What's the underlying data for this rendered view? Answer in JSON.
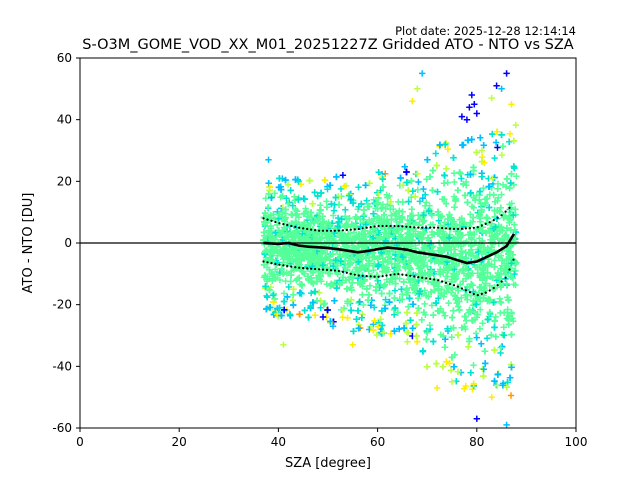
{
  "chart_data": {
    "type": "scatter",
    "plot_date": "Plot date: 2025-12-28 12:14:14",
    "title": "S-O3M_GOME_VOD_XX_M01_20251227Z Gridded ATO - NTO vs SZA",
    "xlabel": "SZA [degree]",
    "ylabel": "ATO - NTO [DU]",
    "xlim": [
      0,
      100
    ],
    "ylim": [
      -60,
      60
    ],
    "x_ticks": [
      0,
      20,
      40,
      60,
      80,
      100
    ],
    "y_ticks": [
      -60,
      -40,
      -20,
      0,
      20,
      40,
      60
    ],
    "grid": false,
    "legend": "none",
    "marker": "plus",
    "zero_line": 0,
    "colors": {
      "density_low": "#0000ff",
      "density_mid_low": "#00bfff",
      "density_mid": "#00e5d0",
      "density_bulk": "#55ff99",
      "density_mid_high": "#bbff44",
      "density_high": "#ffee00",
      "density_peak": "#ff9900",
      "stats": "#000000"
    },
    "envelope": [
      {
        "x": 37,
        "lower": -22,
        "upper": 20
      },
      {
        "x": 40,
        "lower": -24,
        "upper": 21
      },
      {
        "x": 45,
        "lower": -24,
        "upper": 21
      },
      {
        "x": 50,
        "lower": -26,
        "upper": 22
      },
      {
        "x": 55,
        "lower": -29,
        "upper": 22
      },
      {
        "x": 60,
        "lower": -30,
        "upper": 24
      },
      {
        "x": 65,
        "lower": -29,
        "upper": 25
      },
      {
        "x": 68,
        "lower": -33,
        "upper": 27
      },
      {
        "x": 70,
        "lower": -42,
        "upper": 30
      },
      {
        "x": 73,
        "lower": -45,
        "upper": 33
      },
      {
        "x": 76,
        "lower": -47,
        "upper": 36
      },
      {
        "x": 79,
        "lower": -48,
        "upper": 34
      },
      {
        "x": 82,
        "lower": -47,
        "upper": 36
      },
      {
        "x": 85,
        "lower": -48,
        "upper": 40
      },
      {
        "x": 88,
        "lower": -56,
        "upper": 45
      }
    ],
    "outliers": [
      {
        "x": 79,
        "y": 48
      },
      {
        "x": 79.5,
        "y": 45
      },
      {
        "x": 78.5,
        "y": 44
      },
      {
        "x": 80,
        "y": 42
      },
      {
        "x": 77,
        "y": 41
      },
      {
        "x": 78,
        "y": 40
      },
      {
        "x": 81,
        "y": 30
      },
      {
        "x": 81.5,
        "y": 26
      },
      {
        "x": 86,
        "y": 55
      },
      {
        "x": 69,
        "y": 55
      },
      {
        "x": 68,
        "y": 50
      },
      {
        "x": 67,
        "y": 46
      },
      {
        "x": 84,
        "y": 51
      },
      {
        "x": 85,
        "y": 50
      },
      {
        "x": 83,
        "y": 47
      },
      {
        "x": 87,
        "y": 45
      },
      {
        "x": 53,
        "y": 22
      },
      {
        "x": 38,
        "y": 27
      },
      {
        "x": 41,
        "y": -33
      },
      {
        "x": 55,
        "y": -33
      },
      {
        "x": 49,
        "y": -24
      },
      {
        "x": 51,
        "y": -27
      },
      {
        "x": 66,
        "y": -32
      },
      {
        "x": 72,
        "y": -47
      },
      {
        "x": 80,
        "y": -57
      },
      {
        "x": 86,
        "y": -59
      },
      {
        "x": 75,
        "y": -45
      },
      {
        "x": 83,
        "y": -50
      }
    ],
    "mean": [
      {
        "x": 37,
        "y": 0
      },
      {
        "x": 40,
        "y": -0.3
      },
      {
        "x": 42,
        "y": 0
      },
      {
        "x": 44,
        "y": -0.8
      },
      {
        "x": 46,
        "y": -1.2
      },
      {
        "x": 48,
        "y": -1.4
      },
      {
        "x": 50,
        "y": -1.6
      },
      {
        "x": 52,
        "y": -2
      },
      {
        "x": 54,
        "y": -2.5
      },
      {
        "x": 56,
        "y": -3
      },
      {
        "x": 58,
        "y": -2.6
      },
      {
        "x": 60,
        "y": -2
      },
      {
        "x": 62,
        "y": -1.5
      },
      {
        "x": 64,
        "y": -1.8
      },
      {
        "x": 66,
        "y": -2.2
      },
      {
        "x": 68,
        "y": -3
      },
      {
        "x": 70,
        "y": -3.5
      },
      {
        "x": 72,
        "y": -4
      },
      {
        "x": 74,
        "y": -4.5
      },
      {
        "x": 76,
        "y": -5.5
      },
      {
        "x": 78,
        "y": -6.5
      },
      {
        "x": 80,
        "y": -6
      },
      {
        "x": 82,
        "y": -4.5
      },
      {
        "x": 84,
        "y": -3
      },
      {
        "x": 86,
        "y": -1
      },
      {
        "x": 87.5,
        "y": 3
      }
    ],
    "upper_sd": [
      {
        "x": 37,
        "y": 8
      },
      {
        "x": 40,
        "y": 6.5
      },
      {
        "x": 44,
        "y": 5
      },
      {
        "x": 48,
        "y": 4
      },
      {
        "x": 52,
        "y": 4
      },
      {
        "x": 56,
        "y": 4.5
      },
      {
        "x": 60,
        "y": 5.5
      },
      {
        "x": 64,
        "y": 5.5
      },
      {
        "x": 68,
        "y": 5
      },
      {
        "x": 72,
        "y": 5
      },
      {
        "x": 76,
        "y": 4.5
      },
      {
        "x": 80,
        "y": 5
      },
      {
        "x": 83,
        "y": 7
      },
      {
        "x": 85,
        "y": 9
      },
      {
        "x": 87,
        "y": 12
      }
    ],
    "lower_sd": [
      {
        "x": 37,
        "y": -6
      },
      {
        "x": 40,
        "y": -7
      },
      {
        "x": 44,
        "y": -8
      },
      {
        "x": 48,
        "y": -8.5
      },
      {
        "x": 52,
        "y": -9
      },
      {
        "x": 56,
        "y": -10.5
      },
      {
        "x": 60,
        "y": -11
      },
      {
        "x": 64,
        "y": -10
      },
      {
        "x": 68,
        "y": -11
      },
      {
        "x": 72,
        "y": -12
      },
      {
        "x": 76,
        "y": -14
      },
      {
        "x": 80,
        "y": -17
      },
      {
        "x": 82,
        "y": -16
      },
      {
        "x": 84,
        "y": -14
      },
      {
        "x": 86,
        "y": -11
      },
      {
        "x": 87.5,
        "y": -5
      }
    ]
  }
}
